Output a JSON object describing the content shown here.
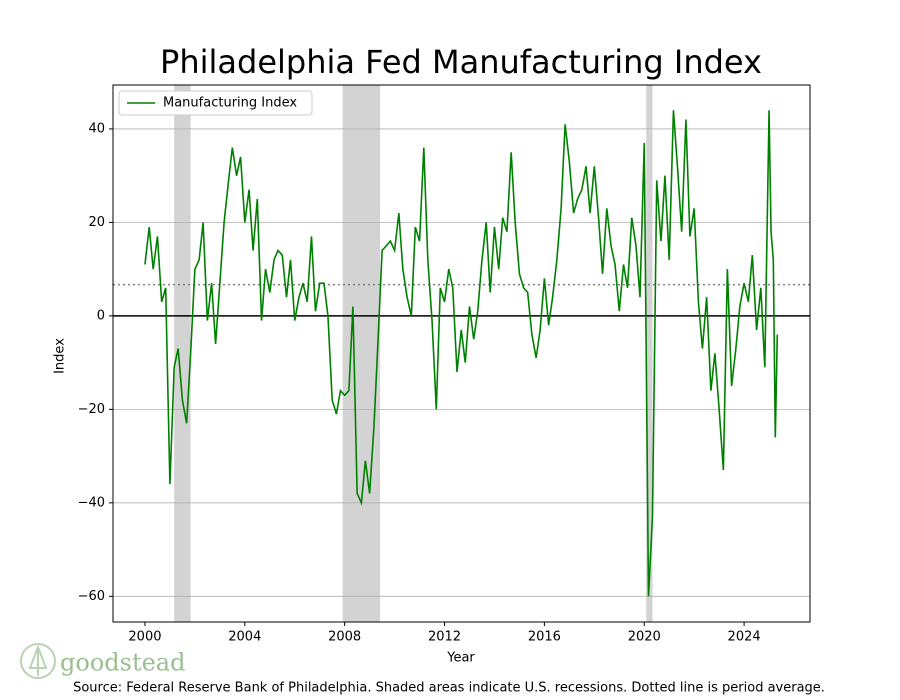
{
  "chart_data": {
    "type": "line",
    "title": "Philadelphia Fed Manufacturing Index",
    "xlabel": "Year",
    "ylabel": "Index",
    "source": "Source: Federal Reserve Bank of Philadelphia. Shaded areas indicate U.S. recessions. Dotted line is period average.",
    "logo": "goodstead",
    "legend": "upper left",
    "grid": true,
    "xlim": [
      1998.72,
      2026.64
    ],
    "ylim": [
      -65.5,
      49.4
    ],
    "xticks": [
      2000,
      2004,
      2008,
      2012,
      2016,
      2020,
      2024
    ],
    "yticks": [
      {
        "value": -60,
        "label": "−60"
      },
      {
        "value": -40,
        "label": "−40"
      },
      {
        "value": -20,
        "label": "−20"
      },
      0,
      20,
      40
    ],
    "average": 6.7,
    "recessions": [
      [
        2001.17,
        2001.83
      ],
      [
        2007.92,
        2009.42
      ],
      [
        2020.08,
        2020.33
      ]
    ],
    "x": [
      2000,
      2000.17,
      2000.33,
      2000.5,
      2000.67,
      2000.83,
      2001,
      2001.17,
      2001.33,
      2001.5,
      2001.67,
      2001.83,
      2002,
      2002.17,
      2002.33,
      2002.5,
      2002.67,
      2002.83,
      2003,
      2003.17,
      2003.33,
      2003.5,
      2003.67,
      2003.83,
      2004,
      2004.17,
      2004.33,
      2004.5,
      2004.67,
      2004.83,
      2005,
      2005.17,
      2005.33,
      2005.5,
      2005.67,
      2005.83,
      2006,
      2006.17,
      2006.33,
      2006.5,
      2006.67,
      2006.83,
      2007,
      2007.17,
      2007.33,
      2007.5,
      2007.67,
      2007.83,
      2008,
      2008.17,
      2008.33,
      2008.5,
      2008.67,
      2008.83,
      2009,
      2009.17,
      2009.33,
      2009.5,
      2009.67,
      2009.83,
      2010,
      2010.17,
      2010.33,
      2010.5,
      2010.67,
      2010.83,
      2011,
      2011.17,
      2011.33,
      2011.5,
      2011.67,
      2011.83,
      2012,
      2012.17,
      2012.33,
      2012.5,
      2012.67,
      2012.83,
      2013,
      2013.17,
      2013.33,
      2013.5,
      2013.67,
      2013.83,
      2014,
      2014.17,
      2014.33,
      2014.5,
      2014.67,
      2014.83,
      2015,
      2015.17,
      2015.33,
      2015.5,
      2015.67,
      2015.83,
      2016,
      2016.17,
      2016.33,
      2016.5,
      2016.67,
      2016.83,
      2017,
      2017.17,
      2017.33,
      2017.5,
      2017.67,
      2017.83,
      2018,
      2018.17,
      2018.33,
      2018.5,
      2018.67,
      2018.83,
      2019,
      2019.17,
      2019.33,
      2019.5,
      2019.67,
      2019.83,
      2020,
      2020.17,
      2020.33,
      2020.5,
      2020.67,
      2020.83,
      2021,
      2021.17,
      2021.33,
      2021.5,
      2021.67,
      2021.83,
      2022,
      2022.17,
      2022.33,
      2022.5,
      2022.67,
      2022.83,
      2023,
      2023.17,
      2023.33,
      2023.5,
      2023.67,
      2023.83,
      2024,
      2024.17,
      2024.33,
      2024.5,
      2024.67,
      2024.83,
      2025,
      2025.08,
      2025.17,
      2025.25,
      2025.33
    ],
    "series": [
      {
        "name": "Manufacturing Index",
        "color": "#008000",
        "values": [
          11,
          19,
          10,
          17,
          3,
          6,
          -36,
          -11,
          -7,
          -18,
          -23,
          -8,
          10,
          12,
          20,
          -1,
          7,
          -6,
          7,
          20,
          28,
          36,
          30,
          34,
          20,
          27,
          14,
          25,
          -1,
          10,
          5,
          12,
          14,
          13,
          4,
          12,
          -1,
          4,
          7,
          3,
          17,
          1,
          7,
          7,
          0,
          -18,
          -21,
          -16,
          -17,
          -16,
          2,
          -38,
          -40,
          -31,
          -38,
          -24,
          -6,
          14,
          15,
          16,
          14,
          22,
          10,
          4,
          0,
          19,
          16,
          36,
          12,
          -1,
          -20,
          6,
          3,
          10,
          6,
          -12,
          -3,
          -10,
          2,
          -5,
          1,
          12,
          20,
          5,
          19,
          10,
          21,
          18,
          35,
          20,
          9,
          6,
          5,
          -4,
          -9,
          -3,
          8,
          -2,
          4,
          12,
          23,
          41,
          33,
          22,
          25,
          27,
          32,
          22,
          32,
          21,
          9,
          23,
          15,
          11,
          1,
          11,
          6,
          21,
          15,
          4,
          37,
          -60,
          -43,
          29,
          16,
          30,
          12,
          44,
          32,
          18,
          42,
          17,
          23,
          3,
          -7,
          4,
          -16,
          -8,
          -20,
          -33,
          10,
          -15,
          -7,
          2,
          7,
          3,
          13,
          -3,
          6,
          -11,
          44,
          18,
          12,
          -26,
          -4
        ]
      }
    ]
  }
}
